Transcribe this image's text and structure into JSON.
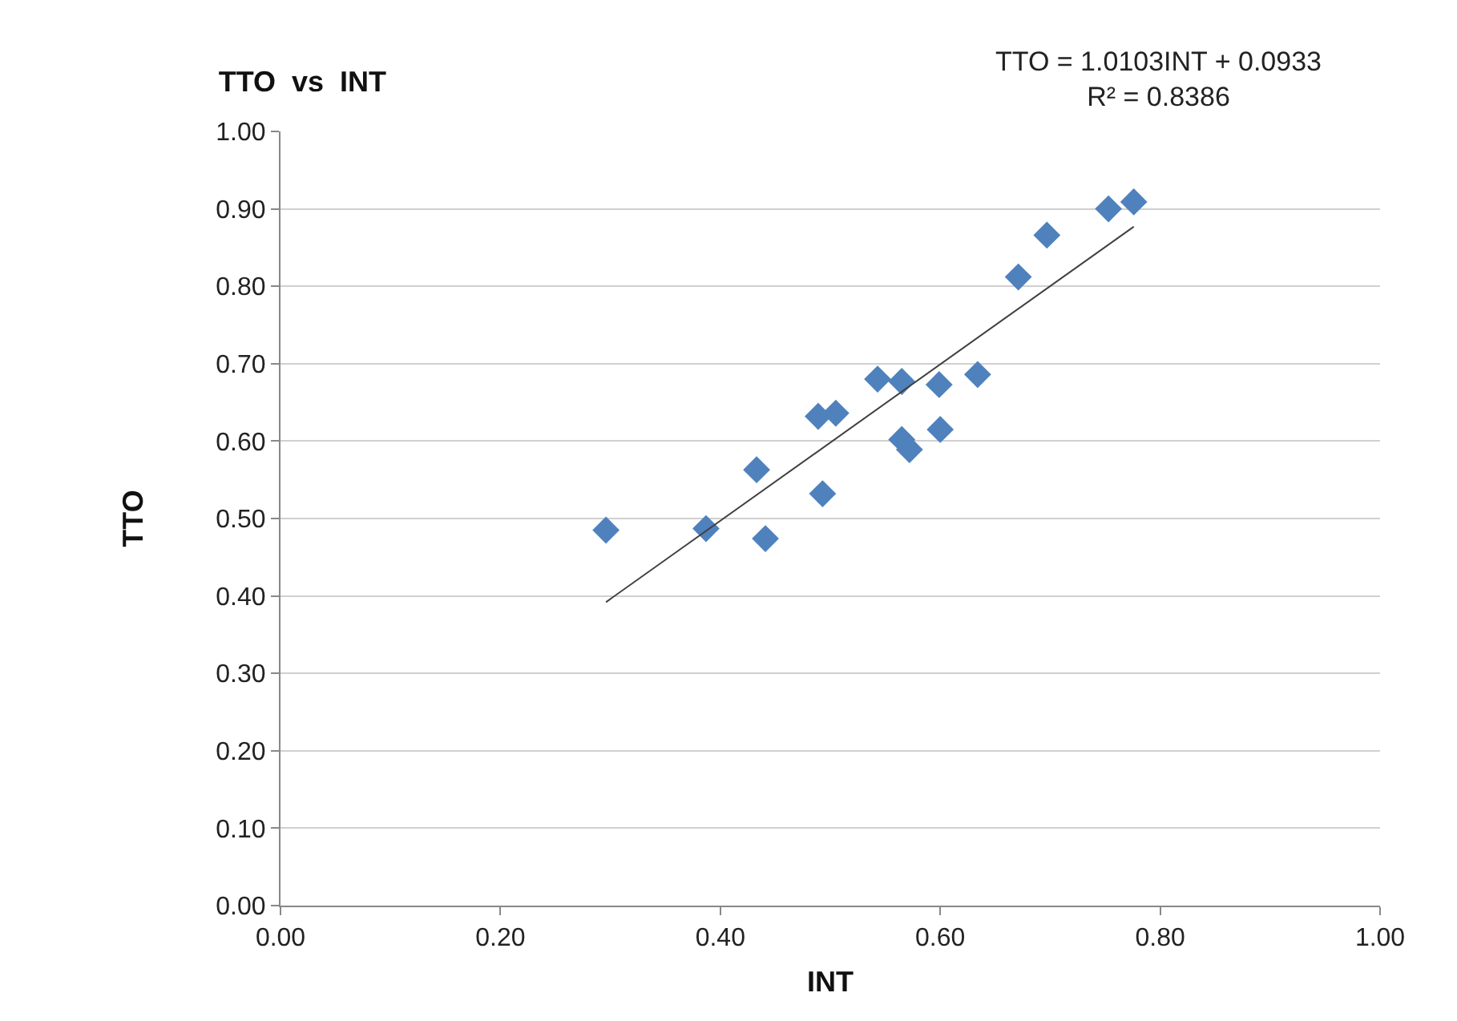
{
  "chart_data": {
    "type": "scatter",
    "title": "TTO  vs  INT",
    "xlabel": "INT",
    "ylabel": "TTO",
    "annotations": [
      "TTO = 1.0103INT + 0.0933",
      "R² = 0.8386"
    ],
    "series": [
      {
        "color": "#4f81bd",
        "marker": "diamond",
        "x": [
          0.296,
          0.387,
          0.441,
          0.433,
          0.493,
          0.489,
          0.505,
          0.543,
          0.565,
          0.565,
          0.572,
          0.599,
          0.6,
          0.634,
          0.671,
          0.697,
          0.753,
          0.776
        ],
        "values": [
          0.485,
          0.487,
          0.474,
          0.563,
          0.532,
          0.632,
          0.636,
          0.68,
          0.677,
          0.602,
          0.589,
          0.673,
          0.615,
          0.686,
          0.812,
          0.866,
          0.9,
          0.909
        ]
      },
      {
        "type": "line",
        "color": "#404040",
        "marker": "none",
        "x": [
          0.296,
          0.776
        ],
        "values": [
          0.392,
          0.877
        ]
      }
    ],
    "xlim": [
      0,
      1
    ],
    "xticks": [
      {
        "value": 0,
        "label": "0.00"
      },
      {
        "value": 0.2,
        "label": "0.20"
      },
      {
        "value": 0.4,
        "label": "0.40"
      },
      {
        "value": 0.6,
        "label": "0.60"
      },
      {
        "value": 0.8,
        "label": "0.80"
      },
      {
        "value": 1,
        "label": "1.00"
      }
    ],
    "ylim": [
      0,
      1
    ],
    "yticks": [
      {
        "value": 0,
        "label": "0.00"
      },
      {
        "value": 0.1,
        "label": "0.10"
      },
      {
        "value": 0.2,
        "label": "0.20"
      },
      {
        "value": 0.3,
        "label": "0.30"
      },
      {
        "value": 0.4,
        "label": "0.40"
      },
      {
        "value": 0.5,
        "label": "0.50"
      },
      {
        "value": 0.6,
        "label": "0.60"
      },
      {
        "value": 0.7,
        "label": "0.70"
      },
      {
        "value": 0.8,
        "label": "0.80"
      },
      {
        "value": 0.9,
        "label": "0.90"
      },
      {
        "value": 1,
        "label": "1.00"
      }
    ],
    "grid": "y"
  }
}
